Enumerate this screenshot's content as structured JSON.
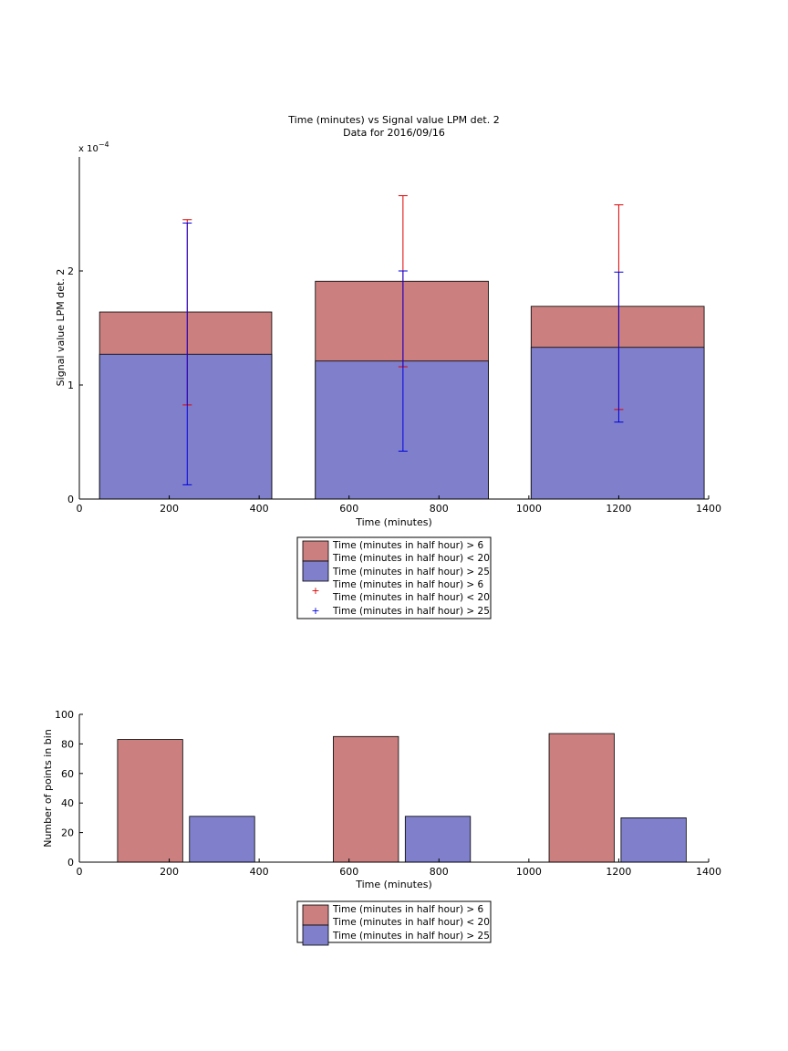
{
  "chart_data": [
    {
      "type": "bar",
      "title": "Time (minutes) vs Signal value LPM det. 2",
      "subtitle": "Data for 2016/09/16",
      "xlabel": "Time (minutes)",
      "ylabel": "Signal value LPM det. 2",
      "y_exponent": "x 10^-4",
      "xlim": [
        0,
        1400
      ],
      "ylim": [
        0,
        0.0003
      ],
      "x_ticks": [
        "0",
        "200",
        "400",
        "600",
        "800",
        "1000",
        "1200",
        "1400"
      ],
      "y_ticks": [
        "0",
        "1",
        "2"
      ],
      "grid": false,
      "legend_position": "below",
      "legend": [
        "Time (minutes in half hour) > 6\nTime (minutes in half hour) < 20",
        "Time (minutes in half hour) > 25",
        "Time (minutes in half hour) > 6\nTime (minutes in half hour) < 20",
        "Time (minutes in half hour) > 25"
      ],
      "bins": [
        {
          "x_start": 45,
          "x_end": 428,
          "center": 240
        },
        {
          "x_start": 525,
          "x_end": 910,
          "center": 720
        },
        {
          "x_start": 1005,
          "x_end": 1390,
          "center": 1200
        }
      ],
      "series": [
        {
          "values": [
            0.000164,
            0.000191,
            0.000169
          ],
          "color": "#cb7f7f",
          "errors": [
            {
              "low": 8.25e-05,
              "high": 0.000245
            },
            {
              "low": 0.000116,
              "high": 0.000266
            },
            {
              "low": 7.85e-05,
              "high": 0.000258
            }
          ],
          "error_color": "#e00000"
        },
        {
          "values": [
            0.000127,
            0.000121,
            0.000133
          ],
          "color": "#7f7fcb",
          "errors": [
            {
              "low": 1.25e-05,
              "high": 0.000242
            },
            {
              "low": 4.2e-05,
              "high": 0.0002
            },
            {
              "low": 6.75e-05,
              "high": 0.000199
            }
          ],
          "error_color": "#0000e0"
        }
      ]
    },
    {
      "type": "bar",
      "xlabel": "Time (minutes)",
      "ylabel": "Number of points in bin",
      "xlim": [
        0,
        1400
      ],
      "ylim": [
        0,
        100
      ],
      "x_ticks": [
        "0",
        "200",
        "400",
        "600",
        "800",
        "1000",
        "1200",
        "1400"
      ],
      "y_ticks": [
        "0",
        "20",
        "40",
        "60",
        "80",
        "100"
      ],
      "grid": false,
      "legend_position": "below",
      "legend": [
        "Time (minutes in half hour) > 6\nTime (minutes in half hour) < 20",
        "Time (minutes in half hour) > 25"
      ],
      "bars": [
        {
          "x_start": 85,
          "x_end": 230,
          "value": 83,
          "series": 0
        },
        {
          "x_start": 245,
          "x_end": 390,
          "value": 31,
          "series": 1
        },
        {
          "x_start": 565,
          "x_end": 710,
          "value": 85,
          "series": 0
        },
        {
          "x_start": 725,
          "x_end": 870,
          "value": 31,
          "series": 1
        },
        {
          "x_start": 1045,
          "x_end": 1190,
          "value": 87,
          "series": 0
        },
        {
          "x_start": 1205,
          "x_end": 1350,
          "value": 30,
          "series": 1
        }
      ],
      "series_colors": [
        "#cb7f7f",
        "#7f7fcb"
      ]
    }
  ]
}
